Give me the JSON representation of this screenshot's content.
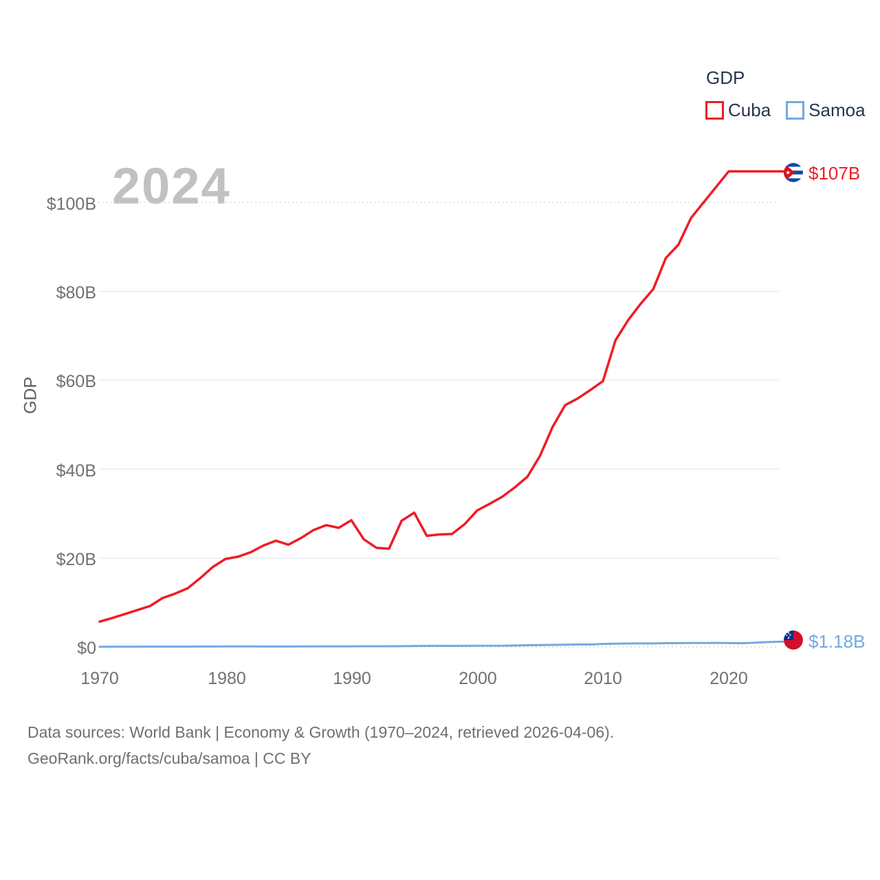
{
  "legend": {
    "title": "GDP",
    "items": [
      {
        "label": "Cuba",
        "color": "#ee1c25",
        "icon": "red-outline-square-swatch"
      },
      {
        "label": "Samoa",
        "color": "#74a9e0",
        "icon": "blue-outline-square-swatch"
      }
    ]
  },
  "watermark_year": "2024",
  "y_axis": {
    "label": "GDP",
    "ticks": [
      "$100B",
      "$80B",
      "$60B",
      "$40B",
      "$20B",
      "$0"
    ]
  },
  "x_axis": {
    "ticks": [
      "1970",
      "1980",
      "1990",
      "2000",
      "2010",
      "2020"
    ]
  },
  "end_labels": {
    "cuba": {
      "value": "$107B",
      "icon": "cuba-flag-icon"
    },
    "samoa": {
      "value": "$1.18B",
      "icon": "samoa-flag-icon"
    }
  },
  "footer": {
    "line1": "Data sources: World Bank | Economy & Growth (1970–2024, retrieved 2026-04-06).",
    "line2": "GeoRank.org/facts/cuba/samoa | CC BY"
  },
  "chart_data": {
    "type": "line",
    "title": "GDP",
    "xlabel": "",
    "ylabel": "GDP",
    "xlim": [
      1970,
      2024
    ],
    "ylim": [
      0,
      110
    ],
    "x_ticks": [
      1970,
      1980,
      1990,
      2000,
      2010,
      2020
    ],
    "y_ticks": [
      0,
      20,
      40,
      60,
      80,
      100
    ],
    "y_tick_unit": "billion USD",
    "grid": "horizontal",
    "legend_position": "top-right",
    "x": [
      1970,
      1971,
      1972,
      1973,
      1974,
      1975,
      1976,
      1977,
      1978,
      1979,
      1980,
      1981,
      1982,
      1983,
      1984,
      1985,
      1986,
      1987,
      1988,
      1989,
      1990,
      1991,
      1992,
      1993,
      1994,
      1995,
      1996,
      1997,
      1998,
      1999,
      2000,
      2001,
      2002,
      2003,
      2004,
      2005,
      2006,
      2007,
      2008,
      2009,
      2010,
      2011,
      2012,
      2013,
      2014,
      2015,
      2016,
      2017,
      2018,
      2019,
      2020,
      2021,
      2022,
      2023,
      2024
    ],
    "series": [
      {
        "name": "Cuba",
        "color": "#ee1c25",
        "end_value_label": "$107B",
        "values": [
          5.7,
          6.5,
          7.4,
          8.3,
          9.2,
          11.0,
          12.0,
          13.2,
          15.5,
          18.0,
          19.8,
          20.3,
          21.3,
          22.8,
          23.9,
          23.0,
          24.5,
          26.3,
          27.4,
          26.8,
          28.5,
          24.2,
          22.3,
          22.1,
          28.4,
          30.2,
          25.0,
          25.3,
          25.4,
          27.6,
          30.7,
          32.2,
          33.8,
          35.9,
          38.3,
          43.0,
          49.5,
          54.4,
          55.9,
          57.8,
          59.8,
          69.0,
          73.5,
          77.2,
          80.5,
          87.5,
          90.5,
          96.5,
          100.0,
          103.5,
          107.0,
          107.0,
          107.0,
          107.0,
          107.0
        ]
      },
      {
        "name": "Samoa",
        "color": "#74a9e0",
        "end_value_label": "$1.18B",
        "values": [
          0.04,
          0.05,
          0.05,
          0.06,
          0.07,
          0.07,
          0.08,
          0.08,
          0.09,
          0.1,
          0.11,
          0.11,
          0.11,
          0.1,
          0.1,
          0.1,
          0.11,
          0.12,
          0.13,
          0.13,
          0.14,
          0.15,
          0.15,
          0.15,
          0.17,
          0.21,
          0.23,
          0.25,
          0.24,
          0.26,
          0.27,
          0.27,
          0.28,
          0.32,
          0.38,
          0.43,
          0.46,
          0.51,
          0.56,
          0.55,
          0.68,
          0.74,
          0.78,
          0.79,
          0.8,
          0.85,
          0.86,
          0.89,
          0.88,
          0.91,
          0.87,
          0.84,
          0.94,
          1.08,
          1.18
        ]
      }
    ]
  }
}
